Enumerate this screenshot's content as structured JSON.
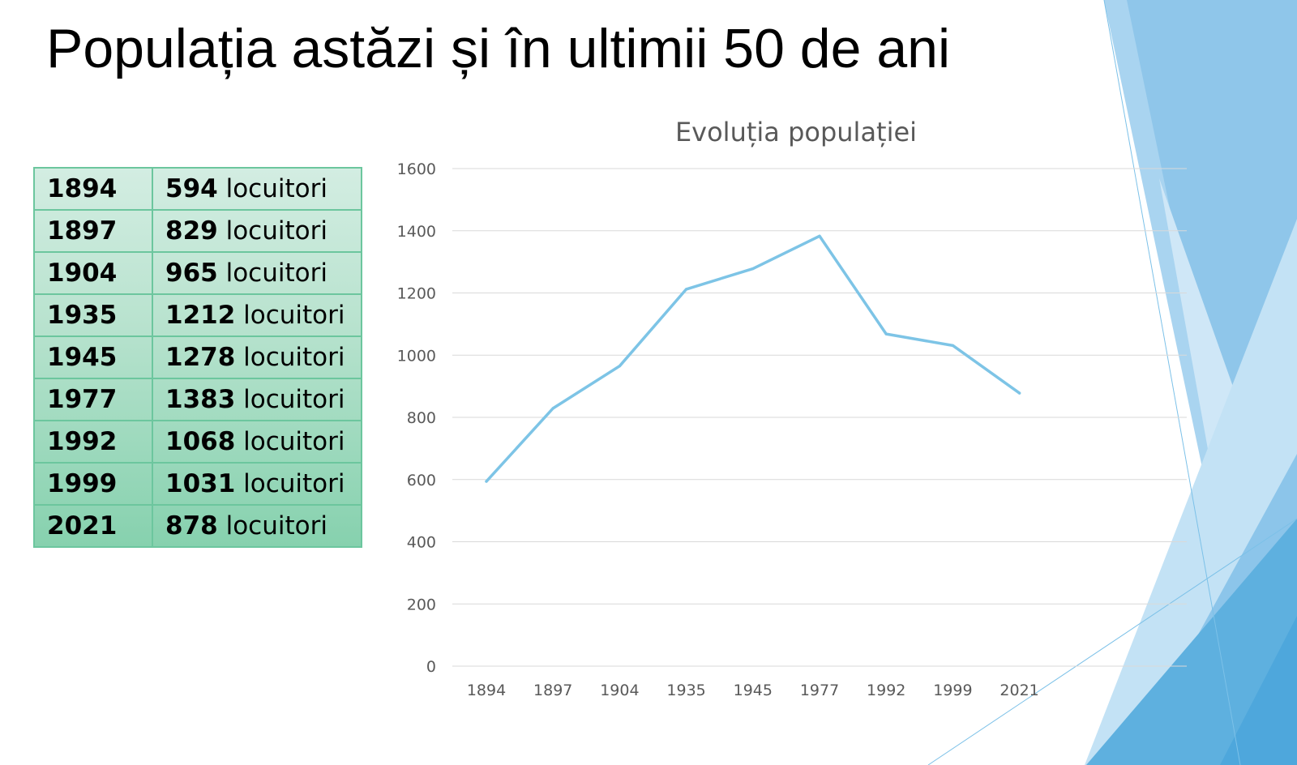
{
  "slide": {
    "title": "Populația astăzi și în ultimii 50 de ani"
  },
  "table": {
    "unit_label": "locuitori",
    "rows": [
      {
        "year": "1894",
        "value": "594"
      },
      {
        "year": "1897",
        "value": "829"
      },
      {
        "year": "1904",
        "value": "965"
      },
      {
        "year": "1935",
        "value": "1212"
      },
      {
        "year": "1945",
        "value": "1278"
      },
      {
        "year": "1977",
        "value": "1383"
      },
      {
        "year": "1992",
        "value": "1068"
      },
      {
        "year": "1999",
        "value": "1031"
      },
      {
        "year": "2021",
        "value": "878"
      }
    ]
  },
  "chart_data": {
    "type": "line",
    "title": "Evoluția populației",
    "xlabel": "",
    "ylabel": "",
    "categories": [
      "1894",
      "1897",
      "1904",
      "1935",
      "1945",
      "1977",
      "1992",
      "1999",
      "2021"
    ],
    "series": [
      {
        "values": [
          594,
          829,
          965,
          1212,
          1278,
          1383,
          1068,
          1031,
          878
        ],
        "color": "#7dc4e6"
      }
    ],
    "ylim": [
      0,
      1600
    ],
    "yticks": [
      0,
      200,
      400,
      600,
      800,
      1000,
      1200,
      1400,
      1600
    ],
    "grid": true,
    "legend": "none"
  },
  "theme": {
    "table_border": "#6cc69e",
    "gridline": "#d9d9d9",
    "axis_text": "#595959",
    "accent_blue": "#5aaee0"
  }
}
